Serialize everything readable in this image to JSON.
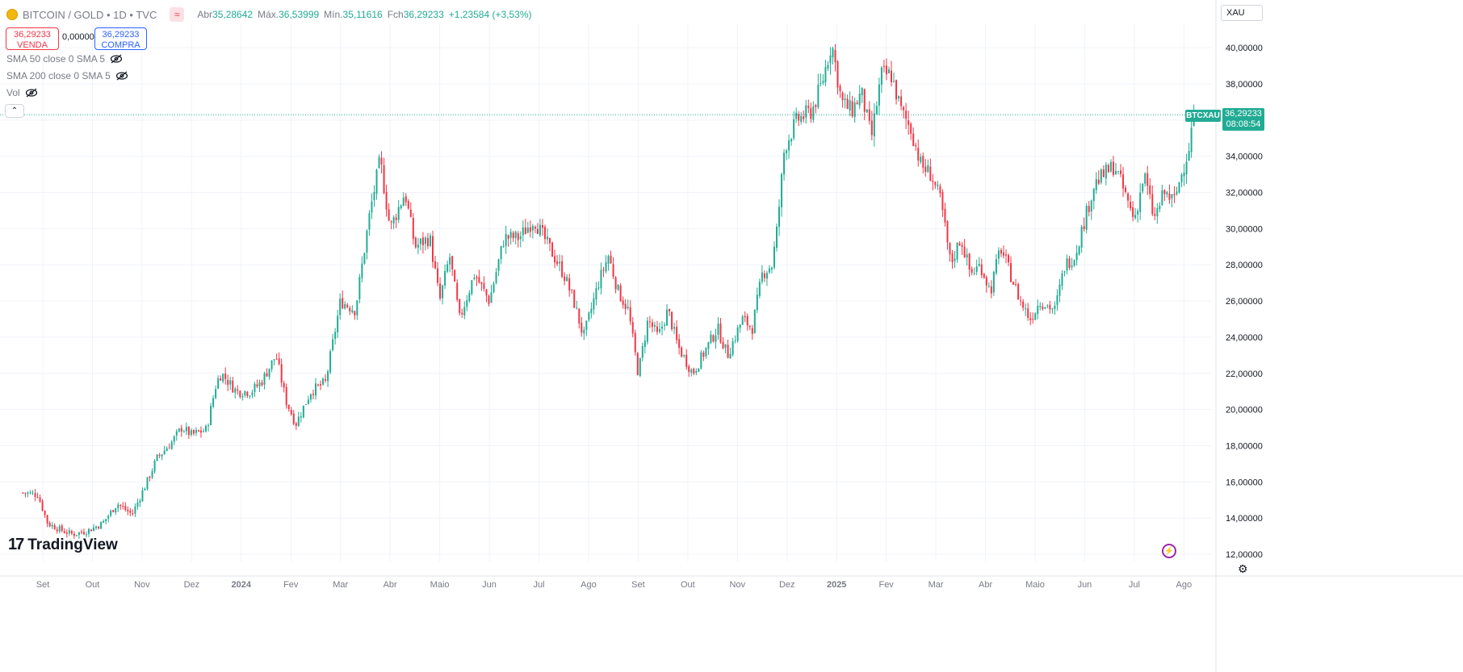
{
  "header": {
    "title": "BITCOIN / GOLD • 1D • TVC",
    "ohlc": [
      {
        "k": "Abr",
        "v": "35,28642"
      },
      {
        "k": "Máx.",
        "v": "36,53999"
      },
      {
        "k": "Mín.",
        "v": "35,11616"
      },
      {
        "k": "Fch",
        "v": "36,29233"
      }
    ],
    "change": "+1,23584 (+3,53%)",
    "currency": "XAU"
  },
  "trade": {
    "sell_price": "36,29233",
    "sell_label": "VENDA",
    "spread": "0,00000",
    "buy_price": "36,29233",
    "buy_label": "COMPRA"
  },
  "indicators": [
    "SMA 50 close 0 SMA 5",
    "SMA 200 close 0 SMA 5",
    "Vol"
  ],
  "price_tag": {
    "symbol": "BTCXAU",
    "price": "36,29233",
    "countdown": "08:08:54"
  },
  "branding": {
    "logo_text": "TradingView",
    "logo_mark": "17"
  },
  "colors": {
    "up": "#22ab94",
    "down": "#f23645",
    "grid": "#f0f3fa",
    "text": "#131722",
    "axis_text": "#787b86"
  },
  "chart_data": {
    "type": "candlestick",
    "title": "BITCOIN / GOLD",
    "ylim": [
      11.6,
      41.3
    ],
    "y_ticks": [
      {
        "value": 12,
        "label": "12,00000"
      },
      {
        "value": 14,
        "label": "14,00000"
      },
      {
        "value": 16,
        "label": "16,00000"
      },
      {
        "value": 18,
        "label": "18,00000"
      },
      {
        "value": 20,
        "label": "20,00000"
      },
      {
        "value": 22,
        "label": "22,00000"
      },
      {
        "value": 24,
        "label": "24,00000"
      },
      {
        "value": 26,
        "label": "26,00000"
      },
      {
        "value": 28,
        "label": "28,00000"
      },
      {
        "value": 30,
        "label": "30,00000"
      },
      {
        "value": 32,
        "label": "32,00000"
      },
      {
        "value": 34,
        "label": "34,00000"
      },
      {
        "value": 36,
        "label": "36,00000"
      },
      {
        "value": 38,
        "label": "38,00000"
      },
      {
        "value": 40,
        "label": "40,00000"
      }
    ],
    "x_ticks": [
      {
        "t": 0.4,
        "label": "Set",
        "bold": false
      },
      {
        "t": 1.4,
        "label": "Out",
        "bold": false
      },
      {
        "t": 2.4,
        "label": "Nov",
        "bold": false
      },
      {
        "t": 3.4,
        "label": "Dez",
        "bold": false
      },
      {
        "t": 4.4,
        "label": "2024",
        "bold": true
      },
      {
        "t": 5.4,
        "label": "Fev",
        "bold": false
      },
      {
        "t": 6.4,
        "label": "Mar",
        "bold": false
      },
      {
        "t": 7.4,
        "label": "Abr",
        "bold": false
      },
      {
        "t": 8.4,
        "label": "Maio",
        "bold": false
      },
      {
        "t": 9.4,
        "label": "Jun",
        "bold": false
      },
      {
        "t": 10.4,
        "label": "Jul",
        "bold": false
      },
      {
        "t": 11.4,
        "label": "Ago",
        "bold": false
      },
      {
        "t": 12.4,
        "label": "Set",
        "bold": false
      },
      {
        "t": 13.4,
        "label": "Out",
        "bold": false
      },
      {
        "t": 14.4,
        "label": "Nov",
        "bold": false
      },
      {
        "t": 15.4,
        "label": "Dez",
        "bold": false
      },
      {
        "t": 16.4,
        "label": "2025",
        "bold": true
      },
      {
        "t": 17.4,
        "label": "Fev",
        "bold": false
      },
      {
        "t": 18.4,
        "label": "Mar",
        "bold": false
      },
      {
        "t": 19.4,
        "label": "Abr",
        "bold": false
      },
      {
        "t": 20.4,
        "label": "Maio",
        "bold": false
      },
      {
        "t": 21.4,
        "label": "Jun",
        "bold": false
      },
      {
        "t": 22.4,
        "label": "Jul",
        "bold": false
      },
      {
        "t": 23.4,
        "label": "Ago",
        "bold": false
      }
    ],
    "anchors": [
      [
        0.0,
        15.4
      ],
      [
        0.3,
        15.3
      ],
      [
        0.5,
        13.7
      ],
      [
        0.8,
        13.3
      ],
      [
        1.0,
        13.1
      ],
      [
        1.3,
        13.3
      ],
      [
        1.6,
        13.7
      ],
      [
        1.9,
        14.8
      ],
      [
        2.2,
        14.2
      ],
      [
        2.5,
        16.0
      ],
      [
        2.7,
        17.3
      ],
      [
        3.0,
        18.2
      ],
      [
        3.2,
        19.0
      ],
      [
        3.4,
        18.6
      ],
      [
        3.7,
        18.9
      ],
      [
        3.9,
        21.5
      ],
      [
        4.0,
        22.0
      ],
      [
        4.3,
        21.0
      ],
      [
        4.6,
        21.0
      ],
      [
        4.8,
        21.5
      ],
      [
        5.1,
        23.0
      ],
      [
        5.3,
        20.5
      ],
      [
        5.5,
        19.2
      ],
      [
        5.8,
        21.0
      ],
      [
        6.1,
        21.5
      ],
      [
        6.4,
        26.0
      ],
      [
        6.7,
        25.5
      ],
      [
        7.0,
        31.0
      ],
      [
        7.2,
        33.8
      ],
      [
        7.4,
        30.0
      ],
      [
        7.7,
        32.0
      ],
      [
        7.9,
        29.0
      ],
      [
        8.2,
        29.5
      ],
      [
        8.4,
        26.0
      ],
      [
        8.6,
        28.5
      ],
      [
        8.8,
        25.0
      ],
      [
        9.1,
        27.5
      ],
      [
        9.4,
        26.0
      ],
      [
        9.7,
        29.5
      ],
      [
        10.0,
        29.5
      ],
      [
        10.3,
        30.5
      ],
      [
        10.6,
        29.0
      ],
      [
        10.9,
        27.5
      ],
      [
        11.1,
        26.0
      ],
      [
        11.3,
        24.0
      ],
      [
        11.6,
        27.0
      ],
      [
        11.8,
        28.5
      ],
      [
        12.0,
        26.5
      ],
      [
        12.2,
        25.5
      ],
      [
        12.4,
        22.0
      ],
      [
        12.6,
        25.0
      ],
      [
        12.8,
        24.0
      ],
      [
        13.0,
        25.5
      ],
      [
        13.2,
        23.5
      ],
      [
        13.5,
        22.0
      ],
      [
        13.8,
        23.5
      ],
      [
        14.0,
        24.5
      ],
      [
        14.2,
        23.0
      ],
      [
        14.5,
        25.0
      ],
      [
        14.7,
        24.5
      ],
      [
        14.9,
        27.5
      ],
      [
        15.1,
        28.0
      ],
      [
        15.2,
        30.0
      ],
      [
        15.35,
        34.5
      ],
      [
        15.6,
        36.0
      ],
      [
        15.9,
        36.5
      ],
      [
        16.1,
        38.0
      ],
      [
        16.3,
        40.3
      ],
      [
        16.5,
        37.0
      ],
      [
        16.7,
        36.5
      ],
      [
        16.9,
        37.5
      ],
      [
        17.1,
        35.0
      ],
      [
        17.3,
        38.5
      ],
      [
        17.5,
        38.5
      ],
      [
        17.7,
        36.5
      ],
      [
        17.9,
        35.5
      ],
      [
        18.1,
        33.5
      ],
      [
        18.3,
        33.0
      ],
      [
        18.5,
        31.5
      ],
      [
        18.7,
        28.0
      ],
      [
        18.9,
        29.5
      ],
      [
        19.1,
        27.5
      ],
      [
        19.3,
        28.0
      ],
      [
        19.5,
        26.5
      ],
      [
        19.7,
        29.0
      ],
      [
        19.9,
        27.5
      ],
      [
        20.1,
        26.0
      ],
      [
        20.3,
        25.0
      ],
      [
        20.5,
        26.0
      ],
      [
        20.8,
        25.5
      ],
      [
        21.0,
        28.0
      ],
      [
        21.2,
        28.5
      ],
      [
        21.4,
        30.5
      ],
      [
        21.6,
        32.5
      ],
      [
        21.8,
        33.0
      ],
      [
        22.0,
        33.5
      ],
      [
        22.2,
        32.0
      ],
      [
        22.4,
        30.5
      ],
      [
        22.6,
        33.0
      ],
      [
        22.8,
        30.5
      ],
      [
        23.0,
        32.0
      ],
      [
        23.2,
        31.5
      ],
      [
        23.35,
        33.0
      ],
      [
        23.5,
        34.5
      ],
      [
        23.6,
        36.29
      ]
    ],
    "last_close": 36.29233
  }
}
